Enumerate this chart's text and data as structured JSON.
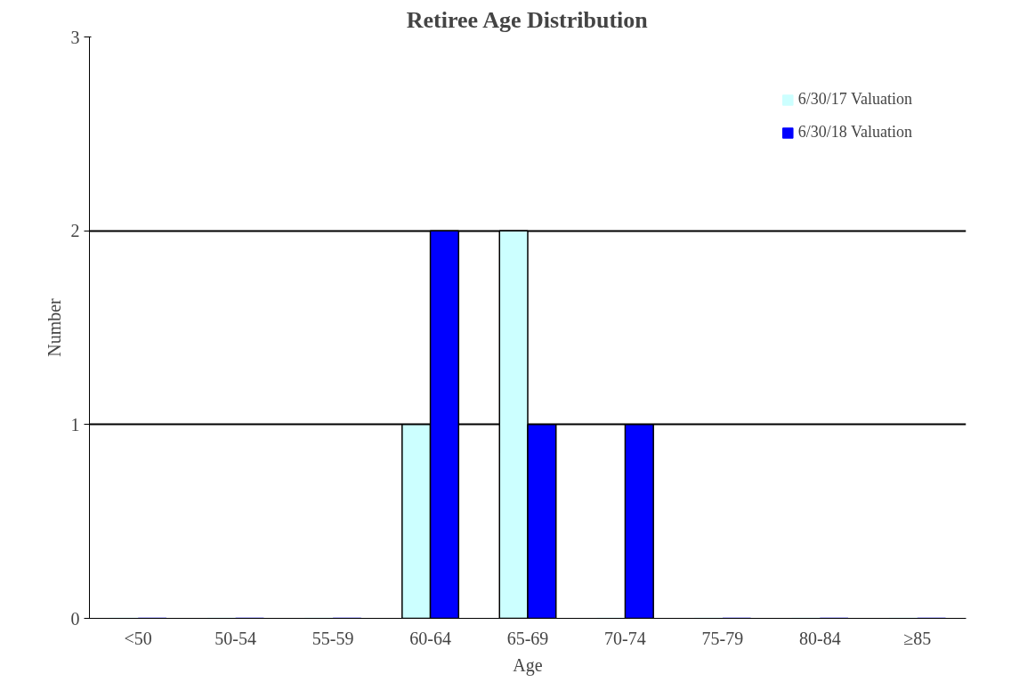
{
  "chart_data": {
    "type": "bar",
    "title": "Retiree Age Distribution",
    "xlabel": "Age",
    "ylabel": "Number",
    "categories": [
      "<50",
      "50-54",
      "55-59",
      "60-64",
      "65-69",
      "70-74",
      "75-79",
      "80-84",
      "≥85"
    ],
    "series": [
      {
        "name": "6/30/17 Valuation",
        "color": "#ccffff",
        "values": [
          0,
          0,
          0,
          1,
          2,
          0,
          0,
          0,
          0
        ]
      },
      {
        "name": "6/30/18 Valuation",
        "color": "#0000ff",
        "values": [
          0,
          0,
          0,
          2,
          1,
          1,
          0,
          0,
          0
        ]
      }
    ],
    "ylim": [
      0,
      3
    ],
    "yticks": [
      0,
      1,
      2,
      3
    ],
    "grid": "y",
    "legend": "top right"
  }
}
